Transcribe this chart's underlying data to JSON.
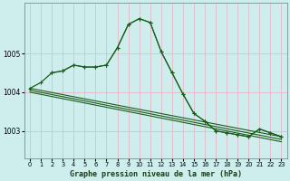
{
  "title": "Graphe pression niveau de la mer (hPa)",
  "bg_color": "#ceeeed",
  "grid_color": "#b8dede",
  "line_color": "#1a5c1a",
  "ylim": [
    1002.3,
    1006.3
  ],
  "xlim": [
    -0.5,
    23.5
  ],
  "yticks": [
    1003,
    1004,
    1005
  ],
  "xticks": [
    0,
    1,
    2,
    3,
    4,
    5,
    6,
    7,
    8,
    9,
    10,
    11,
    12,
    13,
    14,
    15,
    16,
    17,
    18,
    19,
    20,
    21,
    22,
    23
  ],
  "curve1": {
    "x": [
      0,
      1,
      2,
      3,
      4,
      5,
      6,
      7,
      8,
      9,
      10,
      11,
      12,
      13,
      14,
      15,
      16,
      17,
      18,
      19,
      20,
      21,
      22,
      23
    ],
    "y": [
      1004.1,
      1004.25,
      1004.5,
      1004.55,
      1004.7,
      1004.65,
      1004.65,
      1004.7,
      1005.15,
      1005.75,
      1005.9,
      1005.8,
      1005.05,
      1004.5,
      1003.95,
      1003.45,
      1003.25,
      1003.0,
      1002.95,
      1002.9,
      1002.85,
      1003.05,
      1002.95,
      1002.85
    ]
  },
  "curve2": {
    "x": [
      2,
      3,
      4,
      5,
      6,
      7,
      8,
      9,
      10,
      11,
      12,
      13,
      14,
      15,
      16,
      17,
      18,
      19,
      20,
      21,
      22,
      23
    ],
    "y": [
      1004.5,
      1004.55,
      1004.7,
      1004.65,
      1004.65,
      1004.7,
      1005.15,
      1005.75,
      1005.9,
      1005.8,
      1005.05,
      1004.5,
      1003.95,
      1003.45,
      1003.25,
      1003.0,
      1002.95,
      1002.9,
      1002.85,
      1003.05,
      1002.95,
      1002.85
    ]
  },
  "trend1": {
    "x": [
      0,
      23
    ],
    "y": [
      1004.1,
      1002.85
    ]
  },
  "trend2": {
    "x": [
      0,
      23
    ],
    "y": [
      1004.05,
      1002.78
    ]
  },
  "trend3": {
    "x": [
      0,
      23
    ],
    "y": [
      1004.0,
      1002.72
    ]
  }
}
